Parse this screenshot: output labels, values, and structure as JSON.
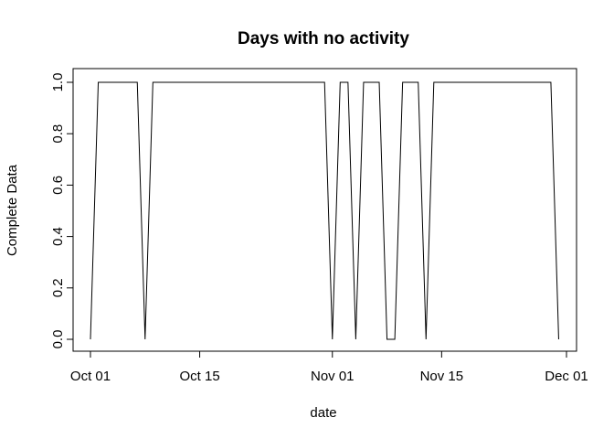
{
  "chart_data": {
    "type": "line",
    "title": "Days with no activity",
    "xlabel": "date",
    "ylabel": "Complete Data",
    "x": [
      "2012-10-01",
      "2012-10-02",
      "2012-10-03",
      "2012-10-04",
      "2012-10-05",
      "2012-10-06",
      "2012-10-07",
      "2012-10-08",
      "2012-10-09",
      "2012-10-10",
      "2012-10-11",
      "2012-10-12",
      "2012-10-13",
      "2012-10-14",
      "2012-10-15",
      "2012-10-16",
      "2012-10-17",
      "2012-10-18",
      "2012-10-19",
      "2012-10-20",
      "2012-10-21",
      "2012-10-22",
      "2012-10-23",
      "2012-10-24",
      "2012-10-25",
      "2012-10-26",
      "2012-10-27",
      "2012-10-28",
      "2012-10-29",
      "2012-10-30",
      "2012-10-31",
      "2012-11-01",
      "2012-11-02",
      "2012-11-03",
      "2012-11-04",
      "2012-11-05",
      "2012-11-06",
      "2012-11-07",
      "2012-11-08",
      "2012-11-09",
      "2012-11-10",
      "2012-11-11",
      "2012-11-12",
      "2012-11-13",
      "2012-11-14",
      "2012-11-15",
      "2012-11-16",
      "2012-11-17",
      "2012-11-18",
      "2012-11-19",
      "2012-11-20",
      "2012-11-21",
      "2012-11-22",
      "2012-11-23",
      "2012-11-24",
      "2012-11-25",
      "2012-11-26",
      "2012-11-27",
      "2012-11-28",
      "2012-11-29",
      "2012-11-30"
    ],
    "series": [
      {
        "values": [
          0,
          1,
          1,
          1,
          1,
          1,
          1,
          0,
          1,
          1,
          1,
          1,
          1,
          1,
          1,
          1,
          1,
          1,
          1,
          1,
          1,
          1,
          1,
          1,
          1,
          1,
          1,
          1,
          1,
          1,
          1,
          0,
          1,
          1,
          0,
          1,
          1,
          1,
          0,
          0,
          1,
          1,
          1,
          0,
          1,
          1,
          1,
          1,
          1,
          1,
          1,
          1,
          1,
          1,
          1,
          1,
          1,
          1,
          1,
          1,
          0
        ],
        "color": "#000000"
      }
    ],
    "xticks": [
      {
        "date": "2012-10-01",
        "label": "Oct 01"
      },
      {
        "date": "2012-10-15",
        "label": "Oct 15"
      },
      {
        "date": "2012-11-01",
        "label": "Nov 01"
      },
      {
        "date": "2012-11-15",
        "label": "Nov 15"
      },
      {
        "date": "2012-12-01",
        "label": "Dec 01"
      }
    ],
    "yticks": [
      "0.0",
      "0.2",
      "0.4",
      "0.6",
      "0.8",
      "1.0"
    ],
    "ylim": [
      0,
      1
    ],
    "grid": false,
    "legend": "none"
  }
}
